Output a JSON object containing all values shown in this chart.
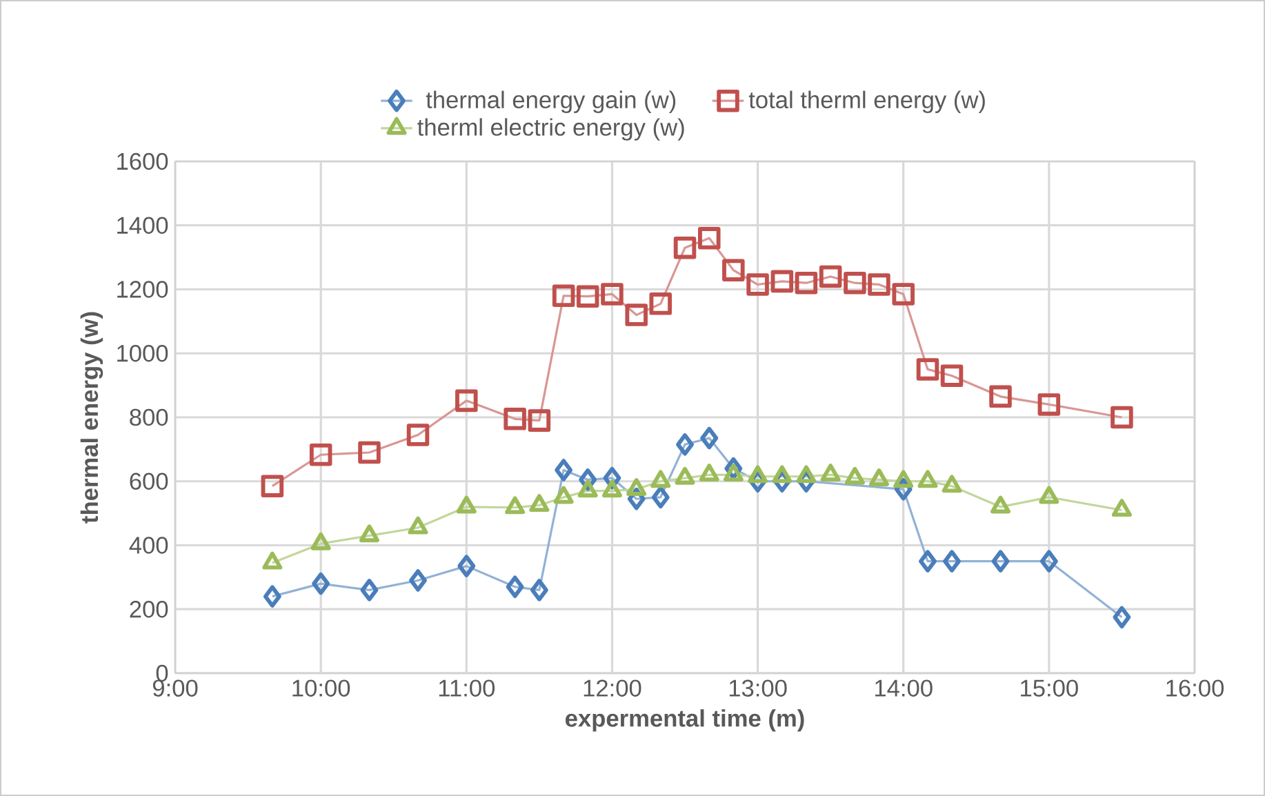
{
  "chart_data": {
    "type": "line",
    "xlabel": "expermental time (m)",
    "ylabel": "thermal energy (w)",
    "x": [
      9.667,
      10,
      10.333,
      10.667,
      11,
      11.333,
      11.5,
      11.667,
      11.833,
      12,
      12.167,
      12.333,
      12.5,
      12.667,
      12.833,
      13,
      13.167,
      13.333,
      13.5,
      13.667,
      13.833,
      14,
      14.167,
      14.333,
      14.667,
      15,
      15.5
    ],
    "series": [
      {
        "name": "thermal energy gain (w)",
        "color": "#4a7ebb",
        "marker": "diamond",
        "values": [
          240,
          280,
          260,
          290,
          335,
          270,
          260,
          635,
          605,
          610,
          545,
          550,
          715,
          735,
          640,
          600,
          600,
          600,
          null,
          null,
          null,
          575,
          350,
          350,
          350,
          350,
          175
        ]
      },
      {
        "name": "total therml energy (w)",
        "color": "#c0504d",
        "marker": "square",
        "values": [
          585,
          683,
          690,
          745,
          852,
          795,
          790,
          1180,
          1178,
          1185,
          1120,
          1155,
          1330,
          1360,
          1260,
          1215,
          1225,
          1220,
          1240,
          1220,
          1215,
          1185,
          950,
          930,
          865,
          840,
          800
        ]
      },
      {
        "name": "therml electric energy (w)",
        "color": "#9bbb59",
        "marker": "triangle",
        "values": [
          345,
          405,
          430,
          455,
          520,
          518,
          525,
          550,
          570,
          570,
          575,
          600,
          610,
          620,
          620,
          615,
          615,
          615,
          620,
          610,
          605,
          600,
          600,
          585,
          520,
          550,
          510
        ]
      }
    ],
    "xlim": [
      9,
      16
    ],
    "xticks": [
      {
        "value": 9,
        "label": "9:00"
      },
      {
        "value": 10,
        "label": "10:00"
      },
      {
        "value": 11,
        "label": "11:00"
      },
      {
        "value": 12,
        "label": "12:00"
      },
      {
        "value": 13,
        "label": "13:00"
      },
      {
        "value": 14,
        "label": "14:00"
      },
      {
        "value": 15,
        "label": "15:00"
      },
      {
        "value": 16,
        "label": "16:00"
      }
    ],
    "ylim": [
      0,
      1600
    ],
    "yticks": [
      0,
      200,
      400,
      600,
      800,
      1000,
      1200,
      1400,
      1600
    ],
    "grid": true,
    "legend": "top",
    "line_style": "solid"
  }
}
